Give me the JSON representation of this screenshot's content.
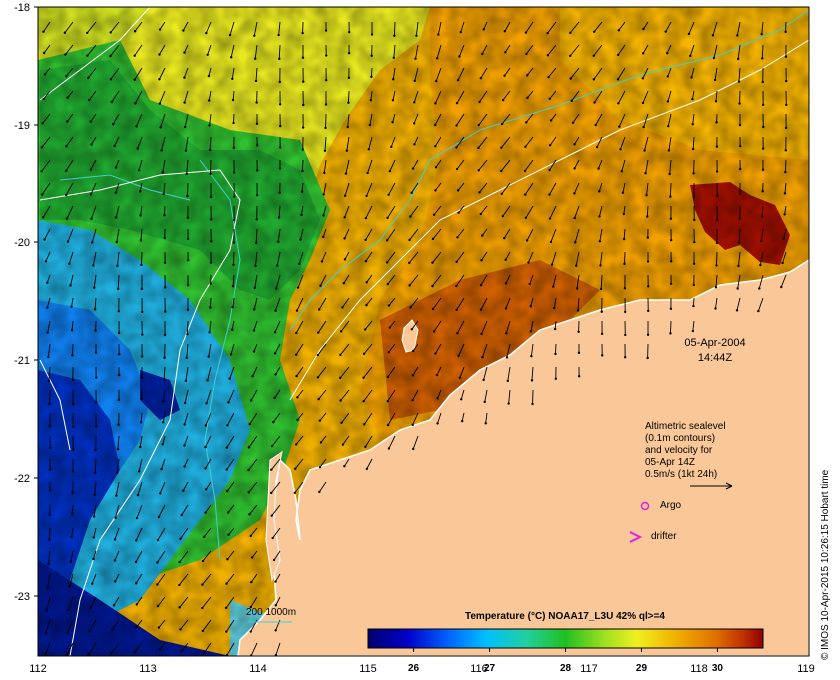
{
  "map": {
    "date": "05-Apr-2004",
    "time": "14:44Z",
    "x_ticks": [
      "112",
      "113",
      "114",
      "115",
      "116",
      "117",
      "118",
      "119"
    ],
    "y_ticks": [
      "-18",
      "-19",
      "-20",
      "-21",
      "-22",
      "-23"
    ],
    "extent": {
      "lon": [
        112,
        119
      ],
      "lat": [
        -23.5,
        -18
      ]
    }
  },
  "legend": {
    "altimetry_lines": [
      "Altimetric sealevel",
      "(0.1m contours)",
      "and velocity for",
      "05-Apr 14Z",
      "0.5m/s (1kt 24h)"
    ],
    "argo_label": "Argo",
    "drifter_label": "drifter",
    "isobath_label": "200  1000m"
  },
  "colorbar": {
    "title": "Temperature (°C) NOAA17_L3U 42% ql>=4",
    "ticks": [
      "26",
      "27",
      "28",
      "29",
      "30"
    ],
    "range": [
      25.4,
      30.6
    ]
  },
  "credit": "© IMOS 10-Apr-2015 10:26:15 Hobart time",
  "colors": {
    "land": "#FAC898",
    "coast_white": "#ffffff",
    "isobath": "#40d0d0",
    "argo": "#e020e0",
    "drifter": "#e020e0"
  }
}
